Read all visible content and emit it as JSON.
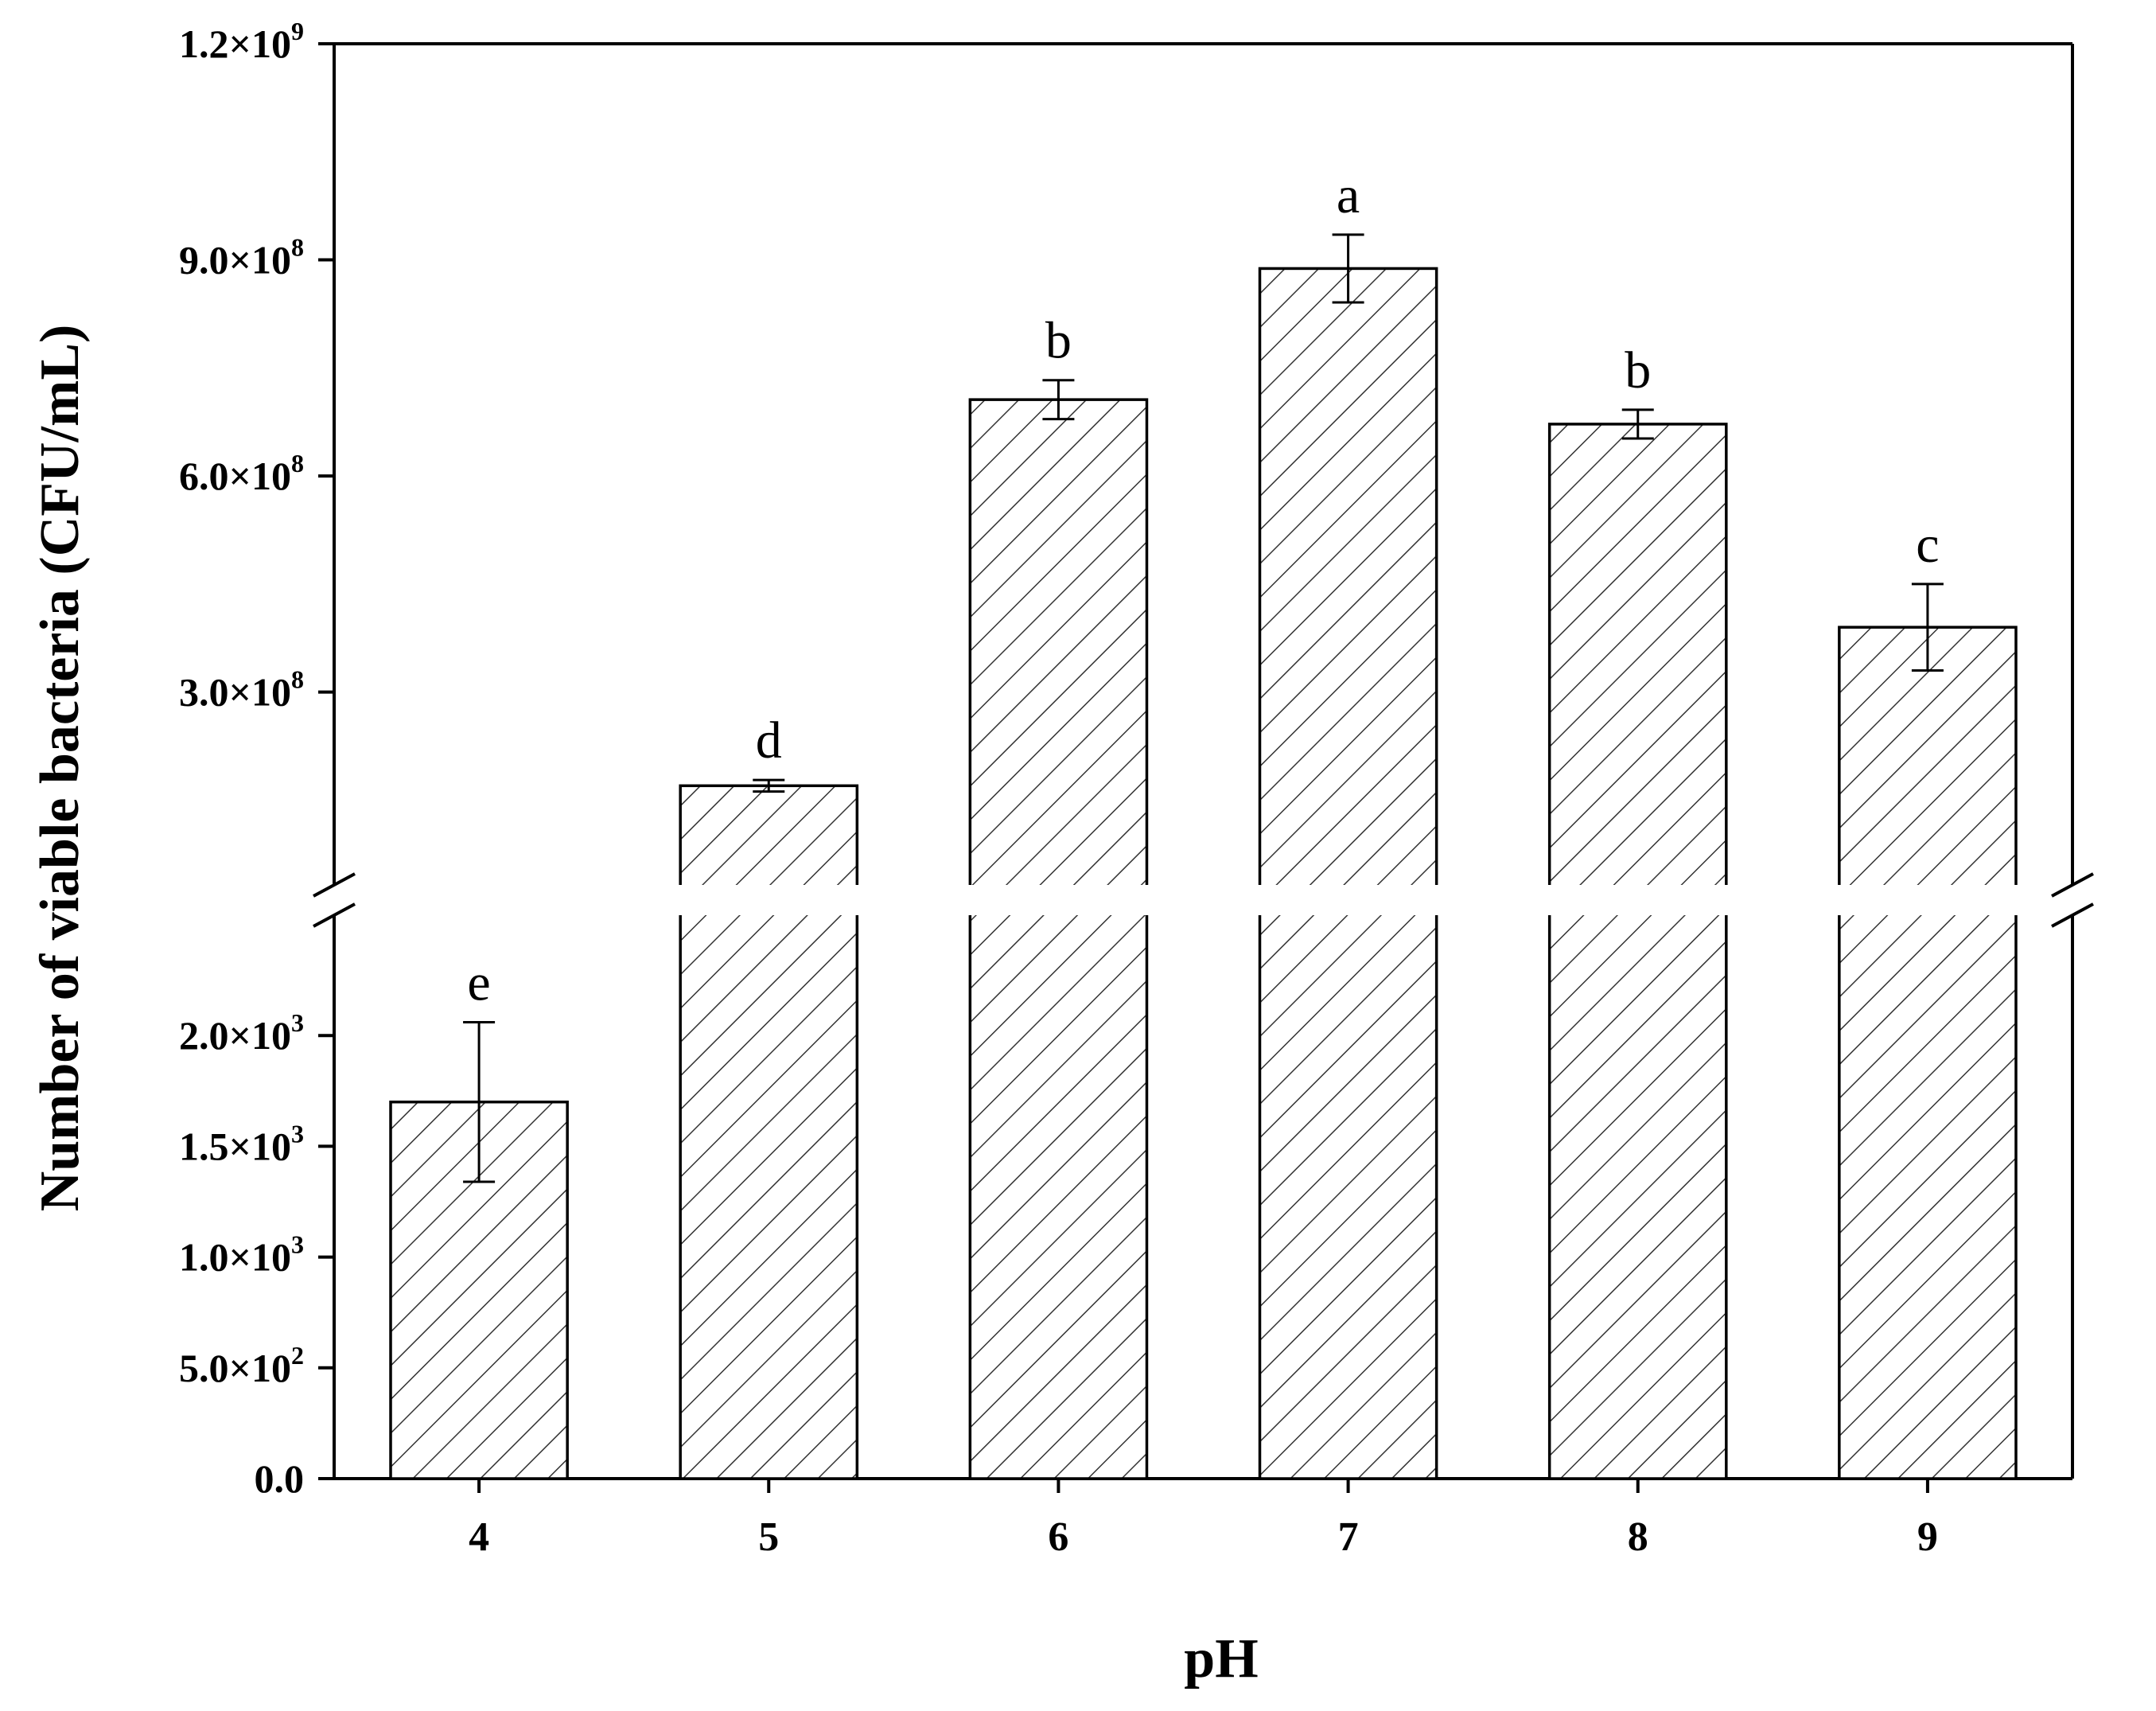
{
  "chart_data": {
    "type": "bar",
    "xlabel": "pH",
    "ylabel": "Number of viable bacteria (CFU/mL)",
    "categories": [
      "4",
      "5",
      "6",
      "7",
      "8",
      "9"
    ],
    "values": [
      1700,
      170000000,
      706000000,
      888000000,
      672000000,
      390000000
    ],
    "errors": [
      360,
      8000000,
      27000000,
      47000000,
      20000000,
      60000000
    ],
    "significance": [
      "e",
      "d",
      "b",
      "a",
      "b",
      "c"
    ],
    "y_axis_broken": true,
    "lower_segment": {
      "ylim": [
        0,
        2500
      ],
      "ticks": [
        {
          "value": 0,
          "mantissa": "0.0",
          "exponent": ""
        },
        {
          "value": 500,
          "mantissa": "5.0×10",
          "exponent": "2"
        },
        {
          "value": 1000,
          "mantissa": "1.0×10",
          "exponent": "3"
        },
        {
          "value": 1500,
          "mantissa": "1.5×10",
          "exponent": "3"
        },
        {
          "value": 2000,
          "mantissa": "2.0×10",
          "exponent": "3"
        }
      ]
    },
    "upper_segment": {
      "ylim": [
        40000000,
        1200000000
      ],
      "ticks": [
        {
          "value": 300000000,
          "mantissa": "3.0×10",
          "exponent": "8"
        },
        {
          "value": 600000000,
          "mantissa": "6.0×10",
          "exponent": "8"
        },
        {
          "value": 900000000,
          "mantissa": "9.0×10",
          "exponent": "8"
        },
        {
          "value": 1200000000,
          "mantissa": "1.2×10",
          "exponent": "9"
        }
      ]
    },
    "bar_fill": "hatched diagonal",
    "bar_color": "#333333",
    "legend": "none",
    "grid": false
  }
}
